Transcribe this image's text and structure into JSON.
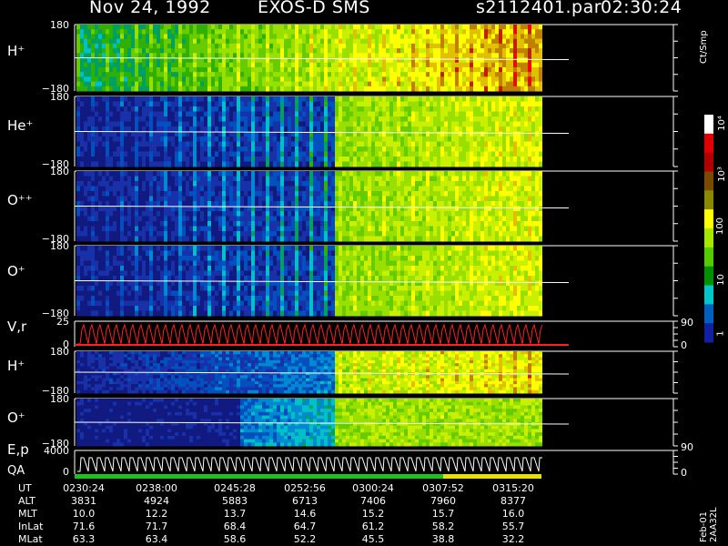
{
  "header": {
    "date": "Nov 24, 1992",
    "instrument": "EXOS-D SMS",
    "file": "s2112401.par",
    "time": "02:30:24"
  },
  "colorbar": {
    "unit": "Ct/Smp",
    "ticks": [
      "10⁴",
      "10³",
      "100",
      "10",
      "1"
    ],
    "stops": [
      "#ffffff",
      "#e00000",
      "#b00000",
      "#7a4a00",
      "#8a8a00",
      "#ffff00",
      "#a8e800",
      "#55cc00",
      "#009000",
      "#00c8c8",
      "#0060c0",
      "#1020a0"
    ]
  },
  "panels": [
    {
      "label": "H⁺",
      "ytop": "180",
      "ybot": "−180"
    },
    {
      "label": "He⁺",
      "ytop": "180",
      "ybot": "−180"
    },
    {
      "label": "O⁺⁺",
      "ytop": "180",
      "ybot": "−180"
    },
    {
      "label": "O⁺",
      "ytop": "180",
      "ybot": "−180"
    },
    {
      "label": "V,r",
      "ytop": "25",
      "ybot": "0",
      "rtop": "90",
      "rbot": "0"
    },
    {
      "label": "H⁺",
      "ytop": "180",
      "ybot": "−180"
    },
    {
      "label": "O⁺",
      "ytop": "180",
      "ybot": "−180"
    },
    {
      "label": "E,p",
      "label2": "QA",
      "ytop": "4000",
      "ybot": "0",
      "rtop": "90",
      "rbot": "0"
    }
  ],
  "ephemeris": {
    "rows": [
      {
        "label": "UT",
        "values": [
          "0230:24",
          "0238:00",
          "0245:28",
          "0252:56",
          "0300:24",
          "0307:52",
          "0315:20"
        ]
      },
      {
        "label": "ALT",
        "values": [
          "3831",
          "4924",
          "5883",
          "6713",
          "7406",
          "7960",
          "8377"
        ]
      },
      {
        "label": "MLT",
        "values": [
          "10.0",
          "12.2",
          "13.7",
          "14.6",
          "15.2",
          "15.7",
          "16.0"
        ]
      },
      {
        "label": "InLat",
        "values": [
          "71.6",
          "71.7",
          "68.4",
          "64.7",
          "61.2",
          "58.2",
          "55.7"
        ]
      },
      {
        "label": "MLat",
        "values": [
          "63.3",
          "63.4",
          "58.6",
          "52.2",
          "45.5",
          "38.8",
          "32.2"
        ]
      }
    ]
  },
  "footer": "Feb-01 2AA32L",
  "chart_data": {
    "type": "heatmap",
    "title": "Nov 24, 1992   EXOS-D SMS",
    "x": [
      "0230:24",
      "0238:00",
      "0245:28",
      "0252:56",
      "0300:24",
      "0307:52",
      "0315:20"
    ],
    "xlim": [
      "0230:24",
      "0318:30"
    ],
    "ylim_pitch": [
      -180,
      180
    ],
    "ylim_velocity": [
      0,
      25
    ],
    "ylim_energy": [
      0,
      4000
    ],
    "color_scale": "log",
    "color_range": [
      1,
      10000
    ],
    "series": [
      {
        "name": "H⁺",
        "peak_counts": [
          30,
          60,
          100,
          300,
          600,
          1000,
          1500
        ]
      },
      {
        "name": "He⁺",
        "peak_counts": [
          3,
          8,
          15,
          30,
          50,
          60,
          60
        ]
      },
      {
        "name": "O⁺⁺",
        "peak_counts": [
          3,
          8,
          15,
          30,
          40,
          50,
          50
        ]
      },
      {
        "name": "O⁺",
        "peak_counts": [
          5,
          10,
          20,
          40,
          60,
          80,
          80
        ]
      }
    ]
  }
}
